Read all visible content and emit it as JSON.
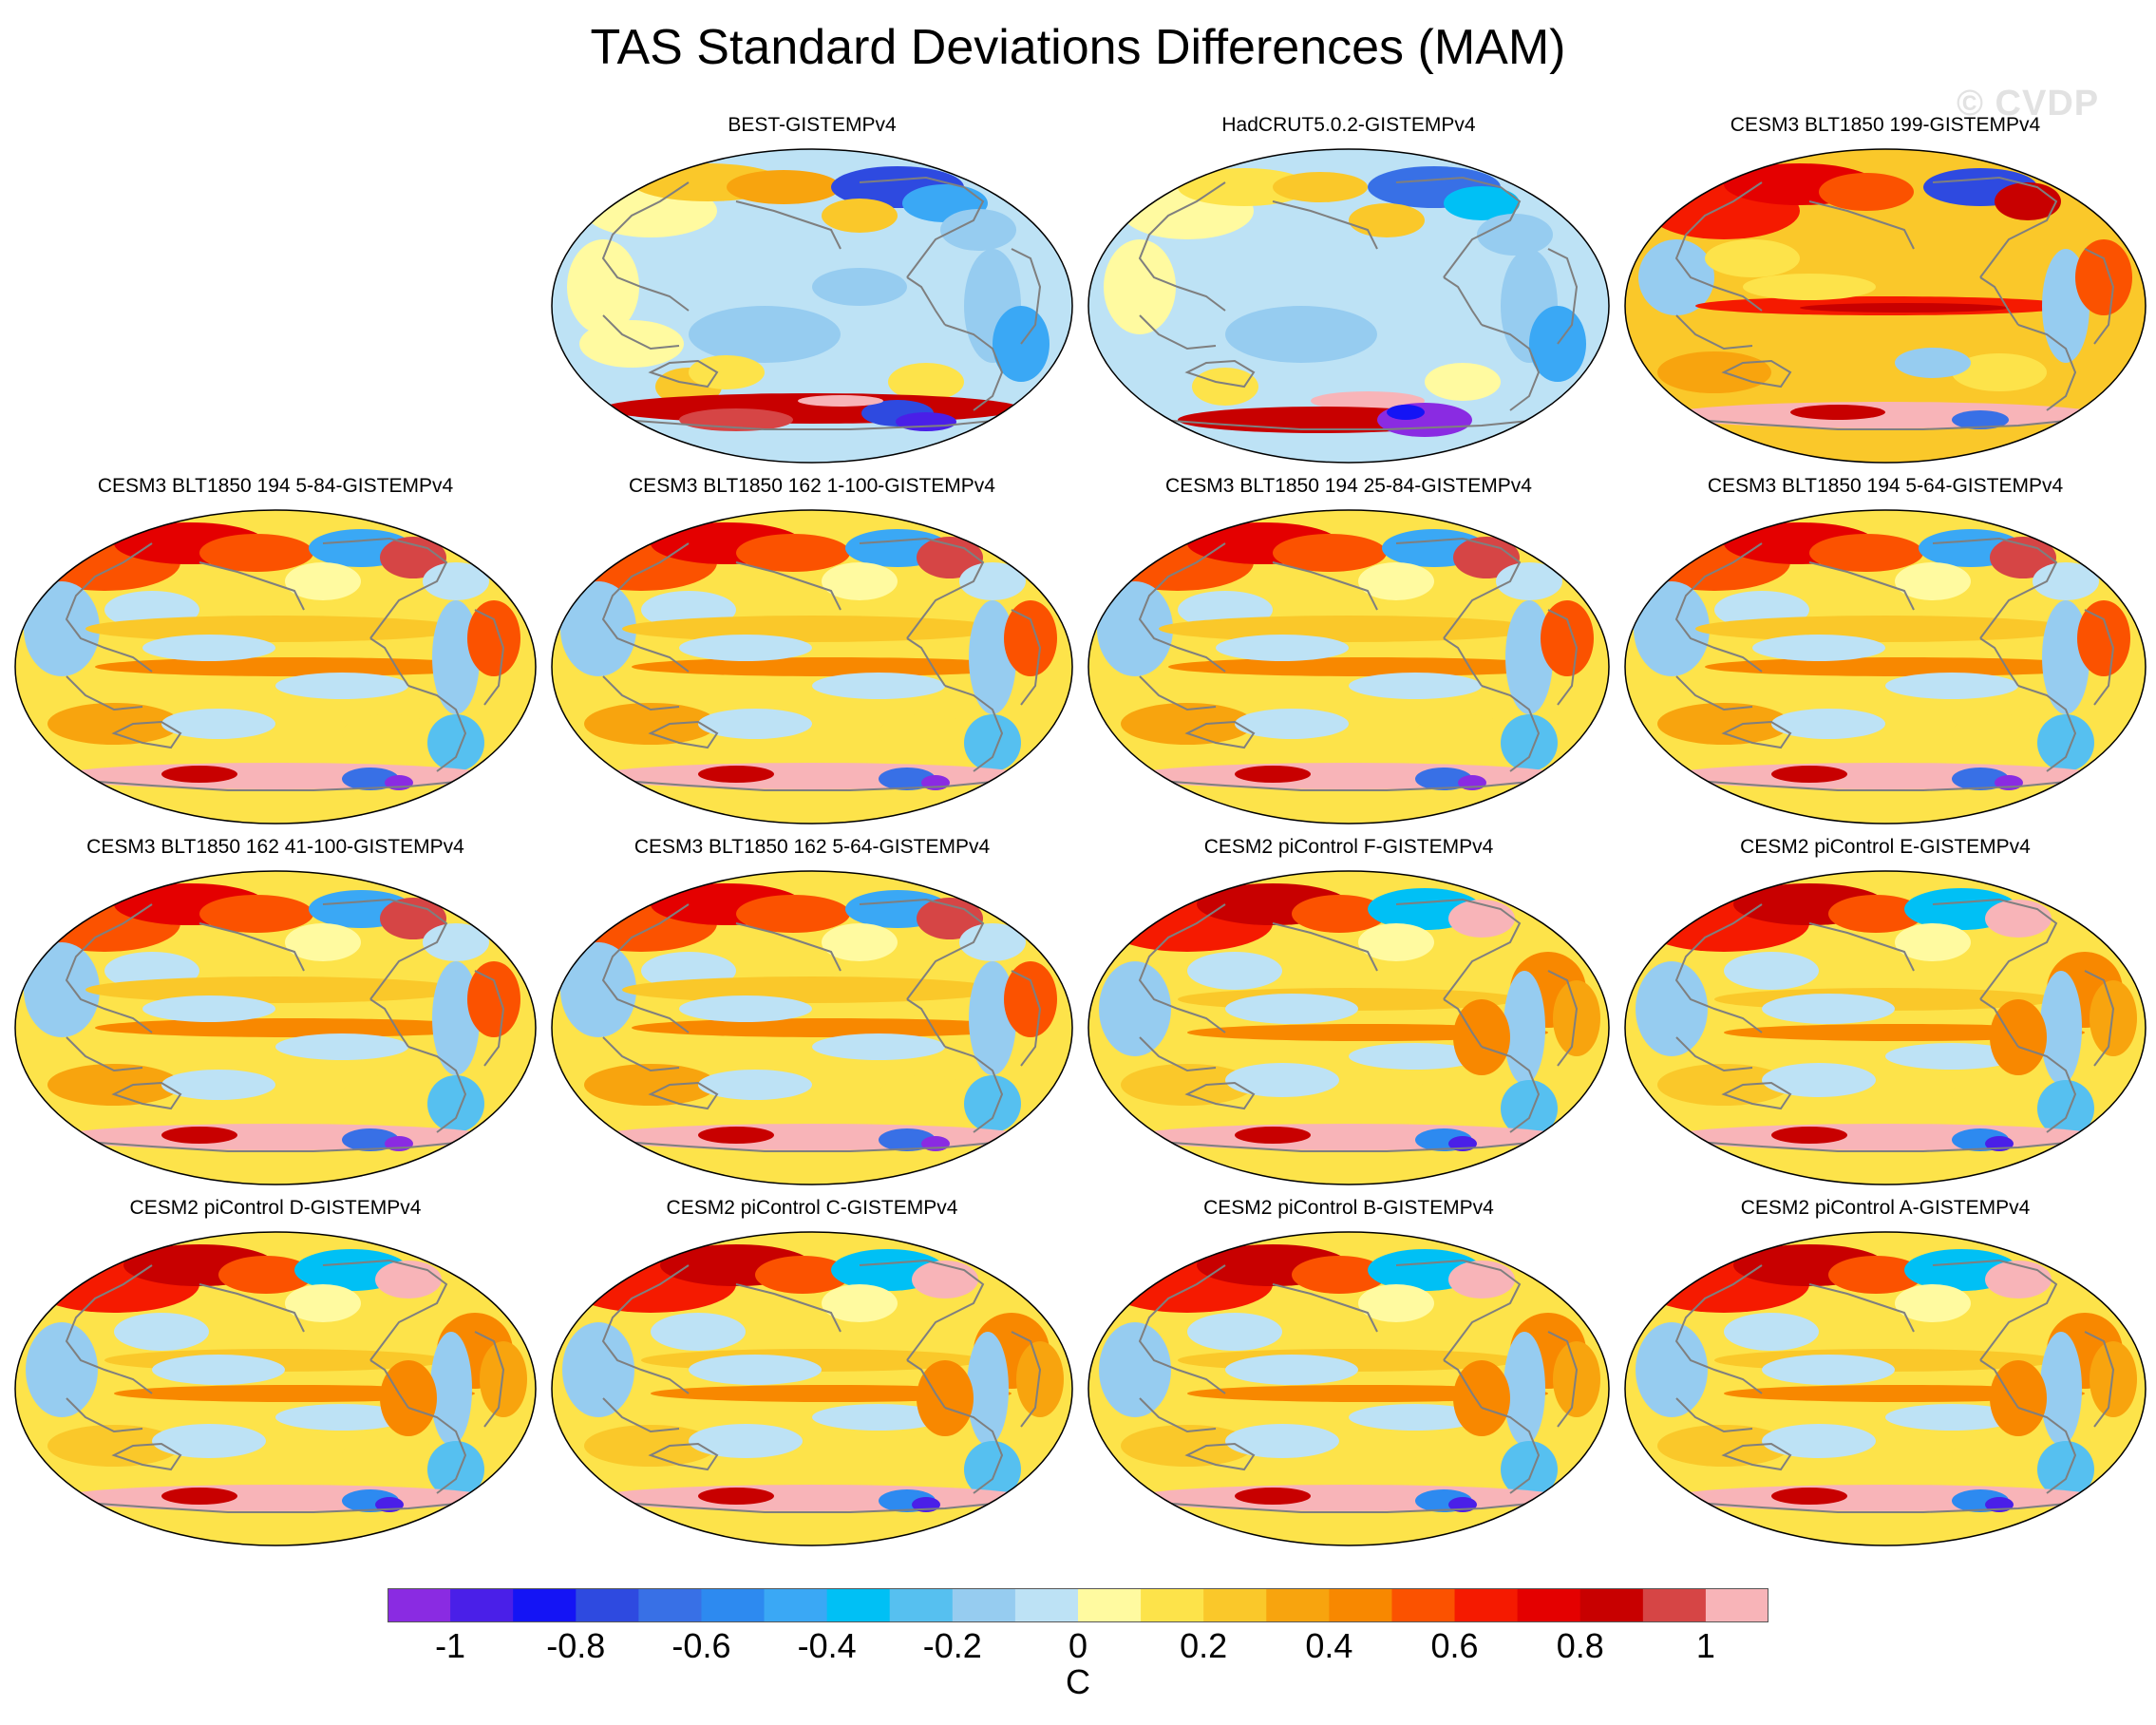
{
  "title": "TAS Standard Deviations Differences (MAM)",
  "watermark": "© CVDP",
  "land_color": "#7f7f7f",
  "panels": [
    {
      "label": "BEST-GISTEMPv4",
      "pattern": "obs1"
    },
    {
      "label": "HadCRUT5.0.2-GISTEMPv4",
      "pattern": "obs2"
    },
    {
      "label": "CESM3 BLT1850 199-GISTEMPv4",
      "pattern": "warm"
    },
    {
      "label": "CESM3 BLT1850 194 5-84-GISTEMPv4",
      "pattern": "model"
    },
    {
      "label": "CESM3 BLT1850 162 1-100-GISTEMPv4",
      "pattern": "model"
    },
    {
      "label": "CESM3 BLT1850 194 25-84-GISTEMPv4",
      "pattern": "model"
    },
    {
      "label": "CESM3 BLT1850 194 5-64-GISTEMPv4",
      "pattern": "model"
    },
    {
      "label": "CESM3 BLT1850 162 41-100-GISTEMPv4",
      "pattern": "model"
    },
    {
      "label": "CESM3 BLT1850 162 5-64-GISTEMPv4",
      "pattern": "model"
    },
    {
      "label": "CESM2 piControl F-GISTEMPv4",
      "pattern": "cesm2"
    },
    {
      "label": "CESM2 piControl E-GISTEMPv4",
      "pattern": "cesm2"
    },
    {
      "label": "CESM2 piControl D-GISTEMPv4",
      "pattern": "cesm2"
    },
    {
      "label": "CESM2 piControl C-GISTEMPv4",
      "pattern": "cesm2"
    },
    {
      "label": "CESM2 piControl B-GISTEMPv4",
      "pattern": "cesm2"
    },
    {
      "label": "CESM2 piControl A-GISTEMPv4",
      "pattern": "cesm2"
    }
  ],
  "colorbar": {
    "units": "C",
    "colors": [
      "#8a2be2",
      "#4a1fe8",
      "#1414f5",
      "#2e4ae0",
      "#3870e6",
      "#2d8af0",
      "#3aa8f5",
      "#00c0f5",
      "#56c0f0",
      "#96ccf0",
      "#bde2f5",
      "#fffaa0",
      "#fde34a",
      "#fac82a",
      "#f8a40e",
      "#f88800",
      "#fb5200",
      "#f51a00",
      "#e40000",
      "#c80000",
      "#d64545",
      "#f8b4b8"
    ],
    "tick_labels": [
      "-1",
      "-0.8",
      "-0.6",
      "-0.4",
      "-0.2",
      "0",
      "0.2",
      "0.4",
      "0.6",
      "0.8",
      "1"
    ]
  }
}
